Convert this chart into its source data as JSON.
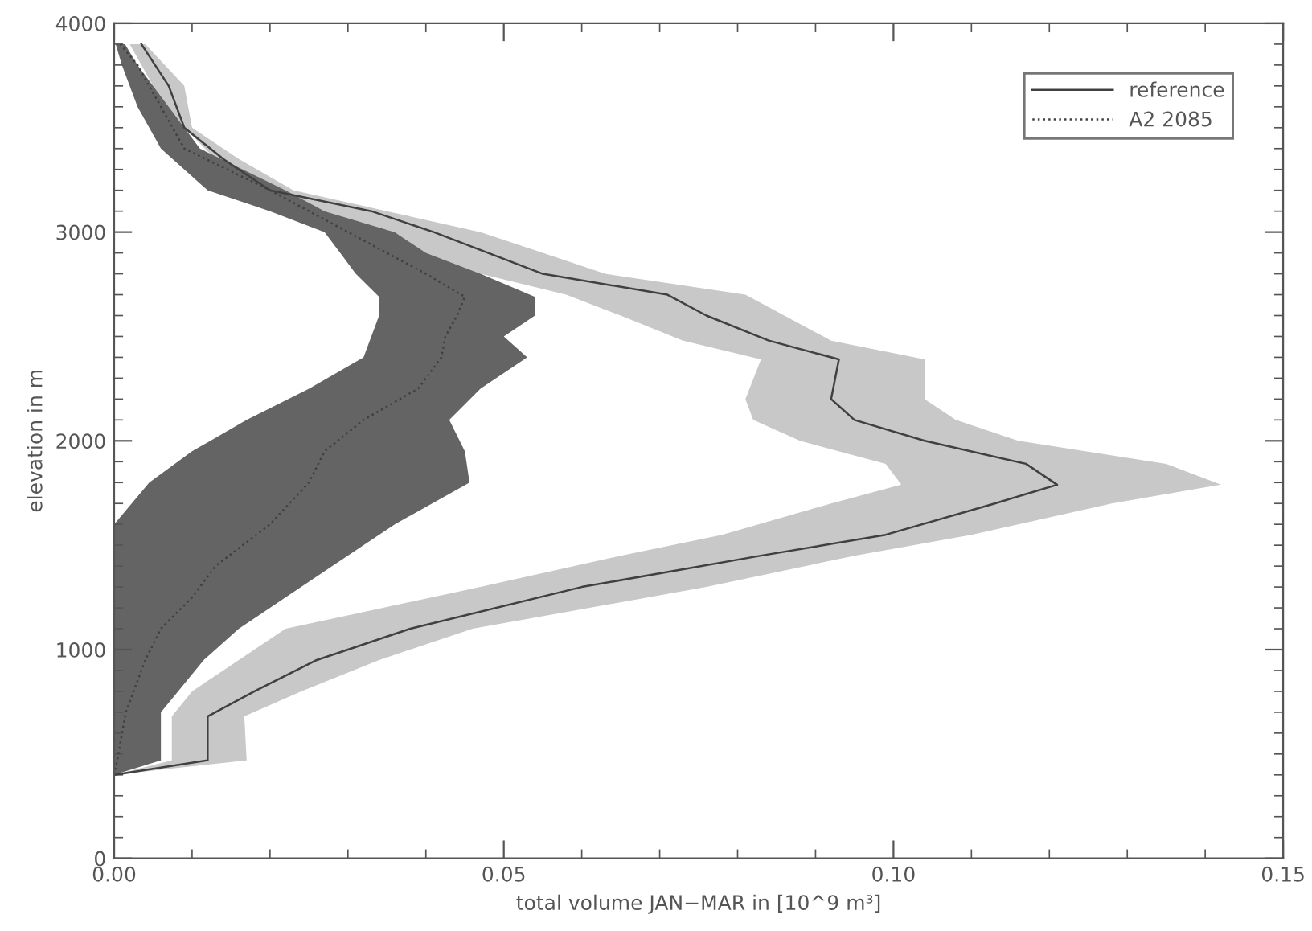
{
  "chart_data": {
    "type": "line",
    "xlabel": "total volume JAN−MAR in [10^9 m³]",
    "ylabel": "elevation in m",
    "xlim": [
      0,
      0.15
    ],
    "xticks": [
      {
        "value": 0,
        "label": "0.00"
      },
      {
        "value": 0.05,
        "label": "0.05"
      },
      {
        "value": 0.1,
        "label": "0.10"
      },
      {
        "value": 0.15,
        "label": "0.15"
      }
    ],
    "ylim": [
      0,
      4000
    ],
    "yticks": [
      0,
      1000,
      2000,
      3000,
      4000
    ],
    "grid": false,
    "legend": "top right",
    "marker": "none",
    "series": [
      {
        "type": "area",
        "color": "#c8c8c8",
        "x": [
          0,
          0.0074,
          0.0074,
          0.01,
          0.016,
          0.022,
          0.047,
          0.065,
          0.078,
          0.092,
          0.101,
          0.099,
          0.088,
          0.082,
          0.081,
          0.083,
          0.073,
          0.065,
          0.058,
          0.047,
          0.04,
          0.036,
          0.027,
          0.022,
          0.013,
          0.009,
          0.005,
          0.002,
          0.004,
          0.009,
          0.01,
          0.016,
          0.023,
          0.035,
          0.047,
          0.055,
          0.063,
          0.081,
          0.086,
          0.092,
          0.104,
          0.104,
          0.108,
          0.116,
          0.135,
          0.142,
          0.128,
          0.11,
          0.095,
          0.076,
          0.046,
          0.034,
          0.024,
          0.0167,
          0.017
        ],
        "values": [
          400,
          470,
          680,
          800,
          950,
          1100,
          1300,
          1450,
          1550,
          1700,
          1790,
          1890,
          2000,
          2100,
          2200,
          2390,
          2480,
          2600,
          2700,
          2800,
          2900,
          3000,
          3100,
          3200,
          3350,
          3500,
          3700,
          3900,
          3900,
          3700,
          3500,
          3350,
          3200,
          3100,
          3000,
          2900,
          2800,
          2700,
          2600,
          2480,
          2390,
          2200,
          2100,
          2000,
          1890,
          1790,
          1700,
          1550,
          1450,
          1300,
          1100,
          950,
          800,
          680,
          470
        ]
      },
      {
        "type": "area",
        "color": "#646464",
        "x": [
          0,
          0,
          0,
          0,
          0,
          0,
          0,
          0,
          0.0045,
          0.01,
          0.017,
          0.025,
          0.032,
          0.033,
          0.034,
          0.034,
          0.031,
          0.029,
          0.027,
          0.02,
          0.012,
          0.006,
          0.003,
          0.001,
          0.0002,
          0.0014,
          0.003,
          0.007,
          0.011,
          0.022,
          0.027,
          0.036,
          0.04,
          0.047,
          0.054,
          0.054,
          0.05,
          0.053,
          0.047,
          0.043,
          0.045,
          0.0456,
          0.036,
          0.028,
          0.022,
          0.016,
          0.0115,
          0.006,
          0.006
        ],
        "values": [
          400,
          470,
          700,
          950,
          1100,
          1250,
          1400,
          1600,
          1800,
          1950,
          2100,
          2250,
          2400,
          2500,
          2600,
          2690,
          2800,
          2900,
          3000,
          3100,
          3200,
          3400,
          3600,
          3800,
          3900,
          3900,
          3800,
          3600,
          3400,
          3200,
          3100,
          3000,
          2900,
          2800,
          2690,
          2600,
          2500,
          2400,
          2250,
          2100,
          1950,
          1800,
          1600,
          1400,
          1250,
          1100,
          950,
          700,
          470
        ]
      },
      {
        "name": "reference",
        "color": "#404040",
        "line_style": "solid",
        "x": [
          0,
          0.012,
          0.012,
          0.018,
          0.026,
          0.038,
          0.06,
          0.083,
          0.099,
          0.113,
          0.121,
          0.117,
          0.104,
          0.095,
          0.092,
          0.093,
          0.084,
          0.076,
          0.071,
          0.055,
          0.048,
          0.041,
          0.033,
          0.02,
          0.014,
          0.009,
          0.007,
          0.0035
        ],
        "values": [
          400,
          470,
          680,
          800,
          950,
          1100,
          1300,
          1450,
          1550,
          1700,
          1790,
          1890,
          2000,
          2100,
          2200,
          2390,
          2480,
          2600,
          2700,
          2800,
          2900,
          3000,
          3100,
          3200,
          3350,
          3500,
          3700,
          3900
        ]
      },
      {
        "name": "A2 2085",
        "color": "#404040",
        "line_style": "dotted",
        "x": [
          0,
          0.0004,
          0.0015,
          0.004,
          0.006,
          0.01,
          0.013,
          0.02,
          0.025,
          0.027,
          0.032,
          0.039,
          0.042,
          0.0425,
          0.044,
          0.045,
          0.04,
          0.035,
          0.03,
          0.025,
          0.02,
          0.009,
          0.006,
          0.003,
          0.0008
        ],
        "values": [
          400,
          470,
          700,
          950,
          1100,
          1250,
          1400,
          1600,
          1800,
          1950,
          2100,
          2250,
          2400,
          2500,
          2600,
          2690,
          2800,
          2900,
          3000,
          3100,
          3200,
          3400,
          3600,
          3800,
          3900
        ]
      }
    ]
  }
}
